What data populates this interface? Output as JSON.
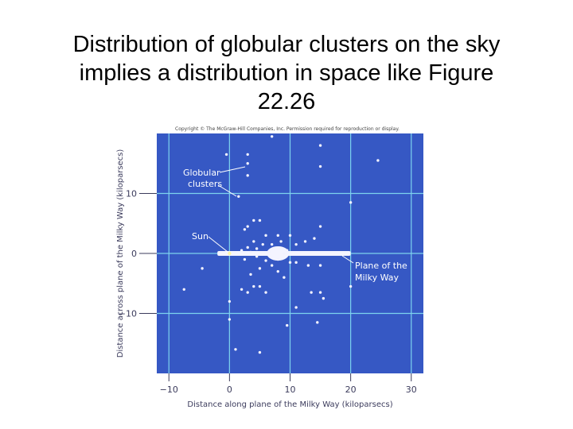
{
  "title": {
    "line1": "Distribution of globular clusters on the sky",
    "line2": "implies a distribution in space like Figure",
    "line3": "22.26"
  },
  "figure": {
    "copyright": "Copyright © The McGraw-Hill Companies, Inc. Permission required for reproduction or display.",
    "colors": {
      "panel": "#3658c4",
      "grid": "#7dd3ee",
      "points": "#f2f2ff",
      "plane": "#f4f4ff",
      "axis_text": "#3b3b5c"
    }
  },
  "chart_data": {
    "type": "scatter",
    "xlabel": "Distance along plane of the Milky Way (kiloparsecs)",
    "ylabel": "Distance across plane of the Milky Way (kiloparsecs)",
    "xlim": [
      -12,
      32
    ],
    "ylim": [
      -20,
      20
    ],
    "xticks": [
      -10,
      0,
      10,
      20,
      30
    ],
    "xtick_labels": [
      "−10",
      "0",
      "10",
      "20",
      "30"
    ],
    "yticks": [
      10,
      0,
      -10
    ],
    "ytick_labels": [
      "10",
      "0",
      "−10"
    ],
    "grid": true,
    "annotations": [
      {
        "lines": [
          "Globular",
          "clusters"
        ]
      },
      {
        "lines": [
          "Sun"
        ]
      },
      {
        "lines": [
          "Plane of the",
          "Milky Way"
        ]
      }
    ],
    "milky_way_plane": {
      "x_start": -2,
      "x_end": 20,
      "y": 0
    },
    "sun": {
      "x": 0,
      "y": 0
    },
    "points": [
      {
        "x": 7,
        "y": 19.5
      },
      {
        "x": 15,
        "y": 18
      },
      {
        "x": -0.5,
        "y": 16.5
      },
      {
        "x": 3,
        "y": 16.5
      },
      {
        "x": 24.5,
        "y": 15.5
      },
      {
        "x": 3,
        "y": 15
      },
      {
        "x": 15,
        "y": 14.5
      },
      {
        "x": 3,
        "y": 13
      },
      {
        "x": 1.5,
        "y": 9.5
      },
      {
        "x": 20,
        "y": 8.5
      },
      {
        "x": 4,
        "y": 5.5
      },
      {
        "x": 5,
        "y": 5.5
      },
      {
        "x": 3,
        "y": 4.5
      },
      {
        "x": 2.5,
        "y": 4
      },
      {
        "x": 15,
        "y": 4.5
      },
      {
        "x": 8,
        "y": 3
      },
      {
        "x": 6,
        "y": 3
      },
      {
        "x": 10,
        "y": 3
      },
      {
        "x": 14,
        "y": 2.5
      },
      {
        "x": 4,
        "y": 2
      },
      {
        "x": 5.5,
        "y": 1.5
      },
      {
        "x": 7,
        "y": 1.5
      },
      {
        "x": 8.5,
        "y": 2
      },
      {
        "x": 11,
        "y": 1.5
      },
      {
        "x": 12.5,
        "y": 2
      },
      {
        "x": 3,
        "y": 1
      },
      {
        "x": 4.5,
        "y": 0.8
      },
      {
        "x": 9.5,
        "y": 0.5
      },
      {
        "x": 2,
        "y": 0.5
      },
      {
        "x": 6.5,
        "y": 0.3
      },
      {
        "x": 3.5,
        "y": 0.2
      },
      {
        "x": 9,
        "y": 0
      },
      {
        "x": 4.5,
        "y": -0.5
      },
      {
        "x": 2.5,
        "y": -1
      },
      {
        "x": 6,
        "y": -1.2
      },
      {
        "x": 8,
        "y": -1
      },
      {
        "x": 10,
        "y": -1.5
      },
      {
        "x": 11,
        "y": -1.5
      },
      {
        "x": 7,
        "y": -2
      },
      {
        "x": 5,
        "y": -2.5
      },
      {
        "x": 13,
        "y": -2
      },
      {
        "x": 15,
        "y": -2
      },
      {
        "x": -4.5,
        "y": -2.5
      },
      {
        "x": 8,
        "y": -3
      },
      {
        "x": 3.5,
        "y": -3.5
      },
      {
        "x": 9,
        "y": -4
      },
      {
        "x": 5,
        "y": -5.5
      },
      {
        "x": 4,
        "y": -5.5
      },
      {
        "x": -7.5,
        "y": -6
      },
      {
        "x": 2,
        "y": -6
      },
      {
        "x": 6,
        "y": -6.5
      },
      {
        "x": 3,
        "y": -6.5
      },
      {
        "x": 20,
        "y": -5.5
      },
      {
        "x": 13.5,
        "y": -6.5
      },
      {
        "x": 15,
        "y": -6.5
      },
      {
        "x": 0,
        "y": -8
      },
      {
        "x": 15.5,
        "y": -7.5
      },
      {
        "x": 11,
        "y": -9
      },
      {
        "x": 0,
        "y": -11
      },
      {
        "x": 9.5,
        "y": -12
      },
      {
        "x": 14.5,
        "y": -11.5
      },
      {
        "x": 1,
        "y": -16
      },
      {
        "x": 5,
        "y": -16.5
      }
    ]
  }
}
